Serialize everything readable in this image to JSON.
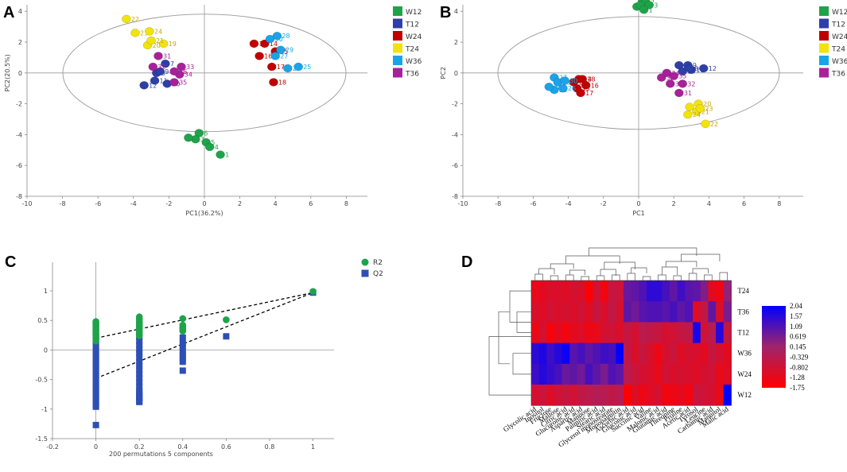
{
  "panel_labels": {
    "a": "A",
    "b": "B",
    "c": "C",
    "d": "D"
  },
  "colors": {
    "W12": "#1fa34a",
    "T12": "#2d3fa8",
    "W24": "#c00000",
    "T24": "#f2e30a",
    "W36": "#19a3e8",
    "T36": "#a8209a",
    "R2": "#1fa34a",
    "Q2": "#2d4fb5"
  },
  "chart_data": [
    {
      "id": "A",
      "type": "scatter",
      "xlabel": "PC1(36.2%)",
      "ylabel": "PC2(20.5%)",
      "xlim": [
        -10,
        10
      ],
      "ylim": [
        -8,
        6
      ],
      "xticks": [
        "-10",
        "-8",
        "-6",
        "-4",
        "-2",
        "0",
        "2",
        "4",
        "6",
        "8"
      ],
      "yticks": [
        "-8",
        "-6",
        "-4",
        "-2",
        "0",
        "2",
        "4",
        "6"
      ],
      "legend": [
        "W12",
        "T12",
        "W24",
        "T24",
        "W36",
        "T36"
      ],
      "points": [
        {
          "g": "W12",
          "x": -0.3,
          "y": -3.9,
          "label": "6"
        },
        {
          "g": "W12",
          "x": -0.5,
          "y": -4.3,
          "label": "3"
        },
        {
          "g": "W12",
          "x": -0.9,
          "y": -4.2,
          "label": "2"
        },
        {
          "g": "W12",
          "x": 0.1,
          "y": -4.5,
          "label": "5"
        },
        {
          "g": "W12",
          "x": 0.3,
          "y": -4.8,
          "label": "4"
        },
        {
          "g": "W12",
          "x": 0.9,
          "y": -5.3,
          "label": "1"
        },
        {
          "g": "T12",
          "x": -2.2,
          "y": 0.6,
          "label": "7"
        },
        {
          "g": "T12",
          "x": -2.7,
          "y": 0.0,
          "label": "8"
        },
        {
          "g": "T12",
          "x": -3.4,
          "y": -0.8,
          "label": "12"
        },
        {
          "g": "T12",
          "x": -2.8,
          "y": -0.5,
          "label": "11"
        },
        {
          "g": "T12",
          "x": -2.1,
          "y": -0.7,
          "label": "10"
        },
        {
          "g": "T12",
          "x": -2.5,
          "y": 0.1,
          "label": "9"
        },
        {
          "g": "W24",
          "x": 2.8,
          "y": 1.9,
          "label": "13"
        },
        {
          "g": "W24",
          "x": 3.4,
          "y": 1.9,
          "label": "14"
        },
        {
          "g": "W24",
          "x": 4.0,
          "y": 1.4,
          "label": "15"
        },
        {
          "g": "W24",
          "x": 3.1,
          "y": 1.1,
          "label": "16"
        },
        {
          "g": "W24",
          "x": 3.8,
          "y": 0.4,
          "label": "17"
        },
        {
          "g": "W24",
          "x": 3.9,
          "y": -0.6,
          "label": "18"
        },
        {
          "g": "T24",
          "x": -2.3,
          "y": 1.9,
          "label": "19"
        },
        {
          "g": "T24",
          "x": -3.2,
          "y": 1.8,
          "label": "20"
        },
        {
          "g": "T24",
          "x": -3.0,
          "y": 2.1,
          "label": "21"
        },
        {
          "g": "T24",
          "x": -4.4,
          "y": 3.5,
          "label": "22"
        },
        {
          "g": "T24",
          "x": -3.9,
          "y": 2.6,
          "label": "23"
        },
        {
          "g": "T24",
          "x": -3.1,
          "y": 2.7,
          "label": "24"
        },
        {
          "g": "W36",
          "x": 5.3,
          "y": 0.4,
          "label": "25"
        },
        {
          "g": "W36",
          "x": 4.7,
          "y": 0.3,
          "label": "26"
        },
        {
          "g": "W36",
          "x": 4.0,
          "y": 1.1,
          "label": "27"
        },
        {
          "g": "W36",
          "x": 4.1,
          "y": 2.4,
          "label": "28"
        },
        {
          "g": "W36",
          "x": 4.3,
          "y": 1.5,
          "label": "29"
        },
        {
          "g": "W36",
          "x": 3.7,
          "y": 2.2,
          "label": "30"
        },
        {
          "g": "T36",
          "x": -2.6,
          "y": 1.1,
          "label": "31"
        },
        {
          "g": "T36",
          "x": -2.9,
          "y": 0.4,
          "label": "32"
        },
        {
          "g": "T36",
          "x": -1.3,
          "y": 0.4,
          "label": "33"
        },
        {
          "g": "T36",
          "x": -1.4,
          "y": -0.1,
          "label": "34"
        },
        {
          "g": "T36",
          "x": -1.7,
          "y": -0.6,
          "label": "35"
        },
        {
          "g": "T36",
          "x": -1.7,
          "y": 0.1,
          "label": "36"
        }
      ]
    },
    {
      "id": "B",
      "type": "scatter",
      "xlabel": "PC1",
      "ylabel": "PC2",
      "xlim": [
        -10,
        10
      ],
      "ylim": [
        -8,
        6
      ],
      "xticks": [
        "-10",
        "-8",
        "-6",
        "-4",
        "-2",
        "0",
        "2",
        "4",
        "6",
        "8"
      ],
      "yticks": [
        "-8",
        "-6",
        "-4",
        "-2",
        "0",
        "2",
        "4",
        "6"
      ],
      "legend": [
        "W12",
        "T12",
        "W24",
        "T24",
        "W36",
        "T36"
      ],
      "points": [
        {
          "g": "W12",
          "x": 0.2,
          "y": 4.6,
          "label": "5"
        },
        {
          "g": "W12",
          "x": 0.4,
          "y": 4.6,
          "label": "2"
        },
        {
          "g": "W12",
          "x": 0.6,
          "y": 4.4,
          "label": "3"
        },
        {
          "g": "W12",
          "x": -0.1,
          "y": 4.3,
          "label": "6"
        },
        {
          "g": "W12",
          "x": 0.1,
          "y": 4.4,
          "label": "4"
        },
        {
          "g": "W12",
          "x": 0.3,
          "y": 4.1,
          "label": "1"
        },
        {
          "g": "T12",
          "x": 2.3,
          "y": 0.5,
          "label": "10"
        },
        {
          "g": "T12",
          "x": 2.8,
          "y": 0.5,
          "label": "9"
        },
        {
          "g": "T12",
          "x": 3.0,
          "y": 0.2,
          "label": "11"
        },
        {
          "g": "T12",
          "x": 3.7,
          "y": 0.3,
          "label": "12"
        },
        {
          "g": "T12",
          "x": 2.5,
          "y": 0.1,
          "label": "7"
        },
        {
          "g": "T12",
          "x": 2.9,
          "y": 0.3,
          "label": "8"
        },
        {
          "g": "W24",
          "x": -3.7,
          "y": -0.6,
          "label": "13"
        },
        {
          "g": "W24",
          "x": -3.4,
          "y": -0.4,
          "label": "14"
        },
        {
          "g": "W24",
          "x": -3.0,
          "y": -0.8,
          "label": "16"
        },
        {
          "g": "W24",
          "x": -3.3,
          "y": -1.3,
          "label": "17"
        },
        {
          "g": "W24",
          "x": -3.2,
          "y": -0.4,
          "label": "18"
        },
        {
          "g": "W24",
          "x": -3.5,
          "y": -1.0,
          "label": "15"
        },
        {
          "g": "T24",
          "x": 2.9,
          "y": -2.2,
          "label": "19"
        },
        {
          "g": "T24",
          "x": 3.4,
          "y": -2.0,
          "label": "20"
        },
        {
          "g": "T24",
          "x": 3.3,
          "y": -2.5,
          "label": "21"
        },
        {
          "g": "T24",
          "x": 3.8,
          "y": -3.3,
          "label": "22"
        },
        {
          "g": "T24",
          "x": 3.5,
          "y": -2.3,
          "label": "23"
        },
        {
          "g": "T24",
          "x": 2.8,
          "y": -2.7,
          "label": "24"
        },
        {
          "g": "W36",
          "x": -4.8,
          "y": -1.1,
          "label": "25"
        },
        {
          "g": "W36",
          "x": -4.3,
          "y": -1.0,
          "label": "26"
        },
        {
          "g": "W36",
          "x": -4.8,
          "y": -0.3,
          "label": "27"
        },
        {
          "g": "W36",
          "x": -5.1,
          "y": -0.9,
          "label": "28"
        },
        {
          "g": "W36",
          "x": -4.6,
          "y": -0.6,
          "label": "29"
        },
        {
          "g": "W36",
          "x": -4.2,
          "y": -0.5,
          "label": "30"
        },
        {
          "g": "T36",
          "x": 2.3,
          "y": -1.3,
          "label": "31"
        },
        {
          "g": "T36",
          "x": 2.5,
          "y": -0.7,
          "label": "32"
        },
        {
          "g": "T36",
          "x": 1.3,
          "y": -0.3,
          "label": "33"
        },
        {
          "g": "T36",
          "x": 1.6,
          "y": 0.0,
          "label": "34"
        },
        {
          "g": "T36",
          "x": 2.0,
          "y": -0.2,
          "label": "35"
        },
        {
          "g": "T36",
          "x": 1.8,
          "y": -0.7,
          "label": "36"
        }
      ]
    },
    {
      "id": "C",
      "type": "scatter",
      "title": "200 permutations 5 components",
      "xlim": [
        -0.2,
        1
      ],
      "ylim": [
        -1.5,
        1
      ],
      "xticks": [
        "-0.2",
        "0",
        "0.2",
        "0.4",
        "0.6",
        "0.8",
        "1"
      ],
      "yticks": [
        "-1.5",
        "-1",
        "-0.5",
        "0",
        "0.5",
        "1"
      ],
      "legend": [
        "R2",
        "Q2"
      ],
      "series": [
        {
          "name": "R2",
          "x": [
            0,
            0,
            0,
            0,
            0,
            0,
            0,
            0,
            0,
            0,
            0,
            0,
            0.2,
            0.2,
            0.2,
            0.2,
            0.2,
            0.2,
            0.2,
            0.2,
            0.2,
            0.2,
            0.2,
            0.4,
            0.4,
            0.4,
            0.4,
            0.4,
            0.6,
            1
          ],
          "y": [
            0.48,
            0.45,
            0.42,
            0.39,
            0.36,
            0.33,
            0.3,
            0.27,
            0.24,
            0.21,
            0.18,
            0.15,
            0.56,
            0.52,
            0.48,
            0.45,
            0.42,
            0.39,
            0.36,
            0.33,
            0.3,
            0.27,
            0.24,
            0.53,
            0.42,
            0.38,
            0.35,
            0.32,
            0.51,
            0.99
          ]
        },
        {
          "name": "Q2",
          "x": [
            0,
            0,
            0,
            0,
            0,
            0,
            0,
            0,
            0,
            0,
            0,
            0,
            0,
            0,
            0,
            0,
            0,
            0,
            0,
            0,
            0,
            0,
            0,
            0,
            0,
            0,
            0.2,
            0.2,
            0.2,
            0.2,
            0.2,
            0.2,
            0.2,
            0.2,
            0.2,
            0.2,
            0.2,
            0.2,
            0.2,
            0.2,
            0.2,
            0.2,
            0.2,
            0.2,
            0.2,
            0.2,
            0.2,
            0.2,
            0.4,
            0.4,
            0.4,
            0.4,
            0.4,
            0.4,
            0.4,
            0.4,
            0.6,
            1
          ],
          "y": [
            0.22,
            0.17,
            0.12,
            0.07,
            0.02,
            -0.03,
            -0.08,
            -0.13,
            -0.18,
            -0.23,
            -0.28,
            -0.33,
            -0.38,
            -0.43,
            -0.48,
            -0.53,
            -0.58,
            -0.63,
            -0.68,
            -0.73,
            -0.78,
            -0.83,
            -0.88,
            -0.93,
            -0.96,
            -1.27,
            0.22,
            0.15,
            0.08,
            0.01,
            -0.06,
            -0.13,
            -0.2,
            -0.27,
            -0.34,
            -0.41,
            -0.48,
            -0.55,
            -0.62,
            -0.69,
            -0.72,
            -0.75,
            -0.78,
            -0.81,
            -0.84,
            -0.87,
            -0.8,
            -0.88,
            0.21,
            0.12,
            0.05,
            -0.02,
            -0.08,
            -0.14,
            -0.2,
            -0.35,
            0.23,
            0.97
          ]
        }
      ],
      "lines": [
        {
          "name": "R2 intercept",
          "x": [
            0,
            1
          ],
          "y": [
            0.2,
            0.97
          ]
        },
        {
          "name": "Q2 intercept",
          "x": [
            0,
            1
          ],
          "y": [
            -0.48,
            0.97
          ]
        }
      ]
    },
    {
      "id": "D",
      "type": "heatmap",
      "rows": [
        "T24",
        "T36",
        "T12",
        "W36",
        "W24",
        "W12"
      ],
      "columns": [
        "Glycolic acid",
        "Inositol",
        "Fructose",
        "Maltose",
        "Citric acid",
        "Glucuronic acid",
        "Aspartic acid",
        "Mannose",
        "Palmitic acid",
        "Stearic acid",
        "Glycerol monostearate",
        "Monopalmitin",
        "Ascorbic acid",
        "Gluconic acid",
        "Succinic acid",
        "Valine",
        "Malonic acid",
        "Glutamic acid",
        "Threonine",
        "Proline",
        "Acetic acid",
        "Tyrosol",
        "Leucine",
        "Carbamic acid",
        "Mannitol",
        "Malic acid"
      ],
      "values": [
        [
          -1.3,
          -1.2,
          -1.0,
          -1.0,
          -1.1,
          -0.9,
          -1.0,
          -1.75,
          -0.8,
          -1.5,
          -0.6,
          -0.7,
          0.8,
          0.9,
          1.1,
          1.5,
          1.5,
          1.2,
          0.9,
          1.3,
          1.0,
          0.9,
          0.5,
          -1.2,
          -1.4,
          0.3
        ],
        [
          -1.0,
          -1.1,
          -0.8,
          -1.0,
          -0.9,
          -1.0,
          -0.8,
          -1.1,
          -0.6,
          -1.0,
          -0.5,
          -0.9,
          0.9,
          0.7,
          1.0,
          1.1,
          1.1,
          1.0,
          1.2,
          0.9,
          1.1,
          -1.1,
          -0.5,
          0.9,
          -1.0,
          0.6
        ],
        [
          -1.4,
          -0.9,
          -1.6,
          -1.2,
          -1.5,
          -1.2,
          -1.1,
          -1.4,
          -1.3,
          -0.9,
          -0.8,
          -1.0,
          -0.6,
          -0.9,
          -0.4,
          -0.5,
          -0.6,
          -0.9,
          -0.8,
          -0.6,
          -0.5,
          1.8,
          -0.8,
          -0.3,
          1.6,
          -0.6
        ],
        [
          1.5,
          1.7,
          1.3,
          1.6,
          1.9,
          1.0,
          1.2,
          0.9,
          1.1,
          1.3,
          1.2,
          2.0,
          -0.5,
          -1.0,
          -0.6,
          -1.0,
          -1.4,
          -0.9,
          -0.7,
          -1.1,
          -0.9,
          -1.0,
          -1.2,
          -0.6,
          -0.9,
          -1.2
        ],
        [
          1.3,
          1.6,
          1.4,
          1.2,
          0.8,
          0.9,
          0.7,
          1.2,
          0.9,
          0.6,
          1.1,
          0.9,
          -0.4,
          -0.7,
          -0.9,
          -1.0,
          -1.3,
          -0.8,
          -1.0,
          -0.9,
          -1.0,
          -1.1,
          -0.9,
          -0.8,
          -1.3,
          -1.1
        ],
        [
          -0.9,
          -0.7,
          -1.1,
          -0.8,
          -0.6,
          -0.8,
          -0.5,
          -0.4,
          -0.2,
          -0.3,
          -0.5,
          -0.3,
          -1.7,
          -1.1,
          -1.4,
          -1.1,
          -0.9,
          -1.5,
          -1.4,
          -1.2,
          -1.5,
          -0.6,
          -0.8,
          -0.9,
          -1.3,
          2.04
        ]
      ],
      "colorbar": {
        "ticks": [
          "2.04",
          "1.57",
          "1.09",
          "0.619",
          "0.145",
          "-0.329",
          "-0.802",
          "-1.28",
          "-1.75"
        ],
        "min": -1.75,
        "max": 2.04,
        "low_color": "#ff0000",
        "mid_color": "#a0246a",
        "high_color": "#0000ff"
      }
    }
  ]
}
